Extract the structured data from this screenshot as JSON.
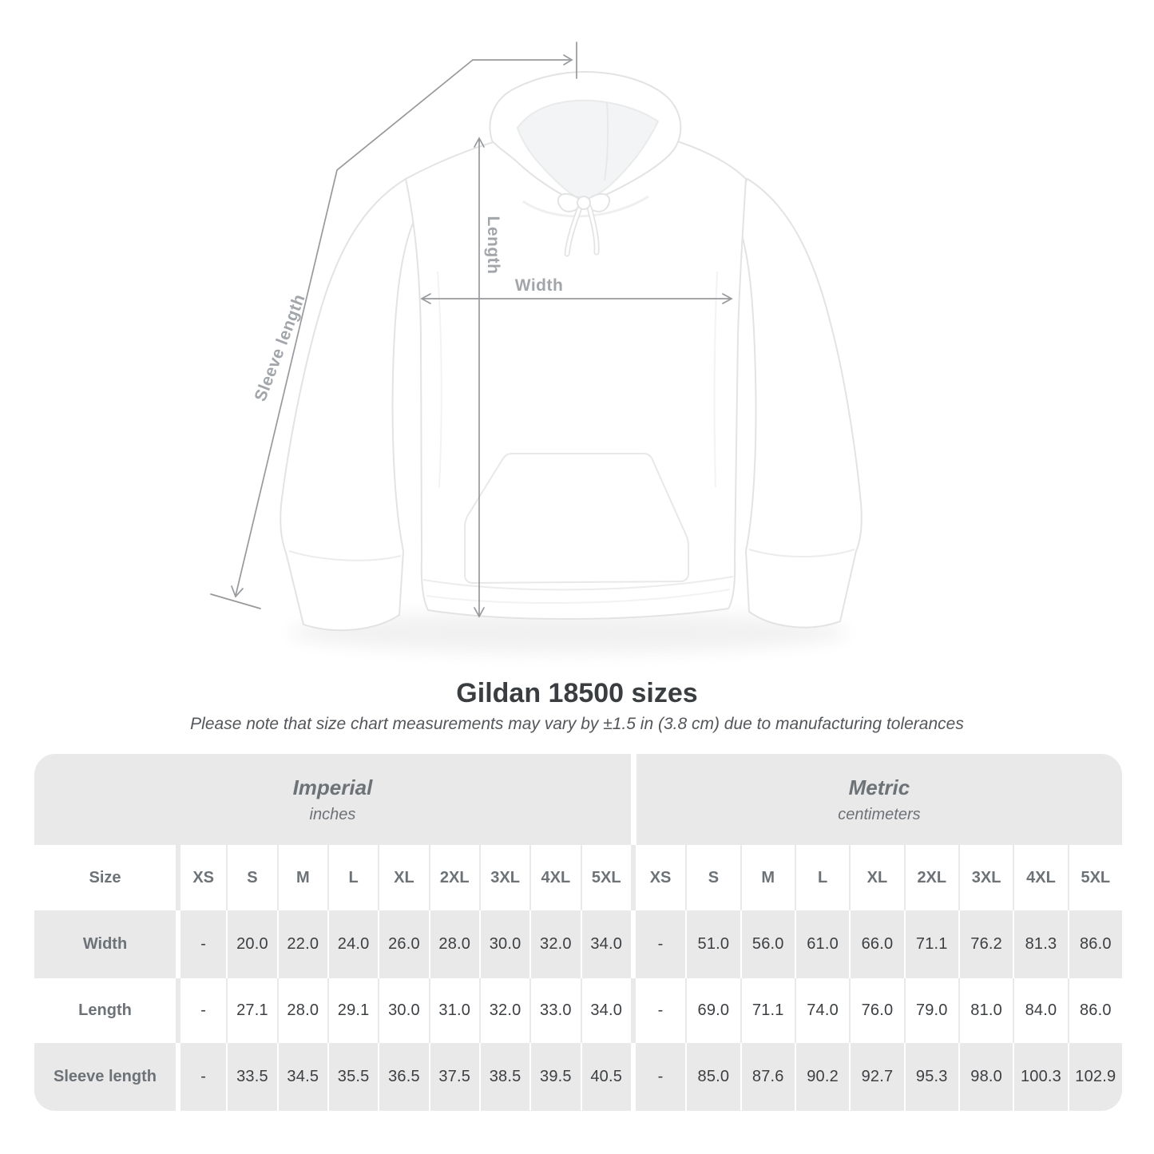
{
  "figure": {
    "length_label": "Length",
    "width_label": "Width",
    "sleeve_label": "Sleeve length"
  },
  "heading": {
    "title": "Gildan 18500 sizes",
    "subtitle": "Please note that size chart measurements may vary by ±1.5 in (3.8 cm) due to manufacturing tolerances"
  },
  "table": {
    "sections": [
      {
        "label": "Imperial",
        "unit": "inches"
      },
      {
        "label": "Metric",
        "unit": "centimeters"
      }
    ],
    "size_header": "Size",
    "size_columns": [
      "XS",
      "S",
      "M",
      "L",
      "XL",
      "2XL",
      "3XL",
      "4XL",
      "5XL"
    ],
    "rows": [
      {
        "label": "Width",
        "imperial": [
          "-",
          "20.0",
          "22.0",
          "24.0",
          "26.0",
          "28.0",
          "30.0",
          "32.0",
          "34.0"
        ],
        "metric": [
          "-",
          "51.0",
          "56.0",
          "61.0",
          "66.0",
          "71.1",
          "76.2",
          "81.3",
          "86.0"
        ]
      },
      {
        "label": "Length",
        "imperial": [
          "-",
          "27.1",
          "28.0",
          "29.1",
          "30.0",
          "31.0",
          "32.0",
          "33.0",
          "34.0"
        ],
        "metric": [
          "-",
          "69.0",
          "71.1",
          "74.0",
          "76.0",
          "79.0",
          "81.0",
          "84.0",
          "86.0"
        ]
      },
      {
        "label": "Sleeve length",
        "imperial": [
          "-",
          "33.5",
          "34.5",
          "35.5",
          "36.5",
          "37.5",
          "38.5",
          "39.5",
          "40.5"
        ],
        "metric": [
          "-",
          "85.0",
          "87.6",
          "90.2",
          "92.7",
          "95.3",
          "98.0",
          "100.3",
          "102.9"
        ]
      }
    ]
  },
  "colors": {
    "panel_gray": "#e9e9ea",
    "header_text": "#6d7277",
    "value_text": "#3c3f42",
    "annotation_line": "#97999c",
    "annotation_label": "#a2a6aa",
    "title_text": "#3b3e40"
  }
}
